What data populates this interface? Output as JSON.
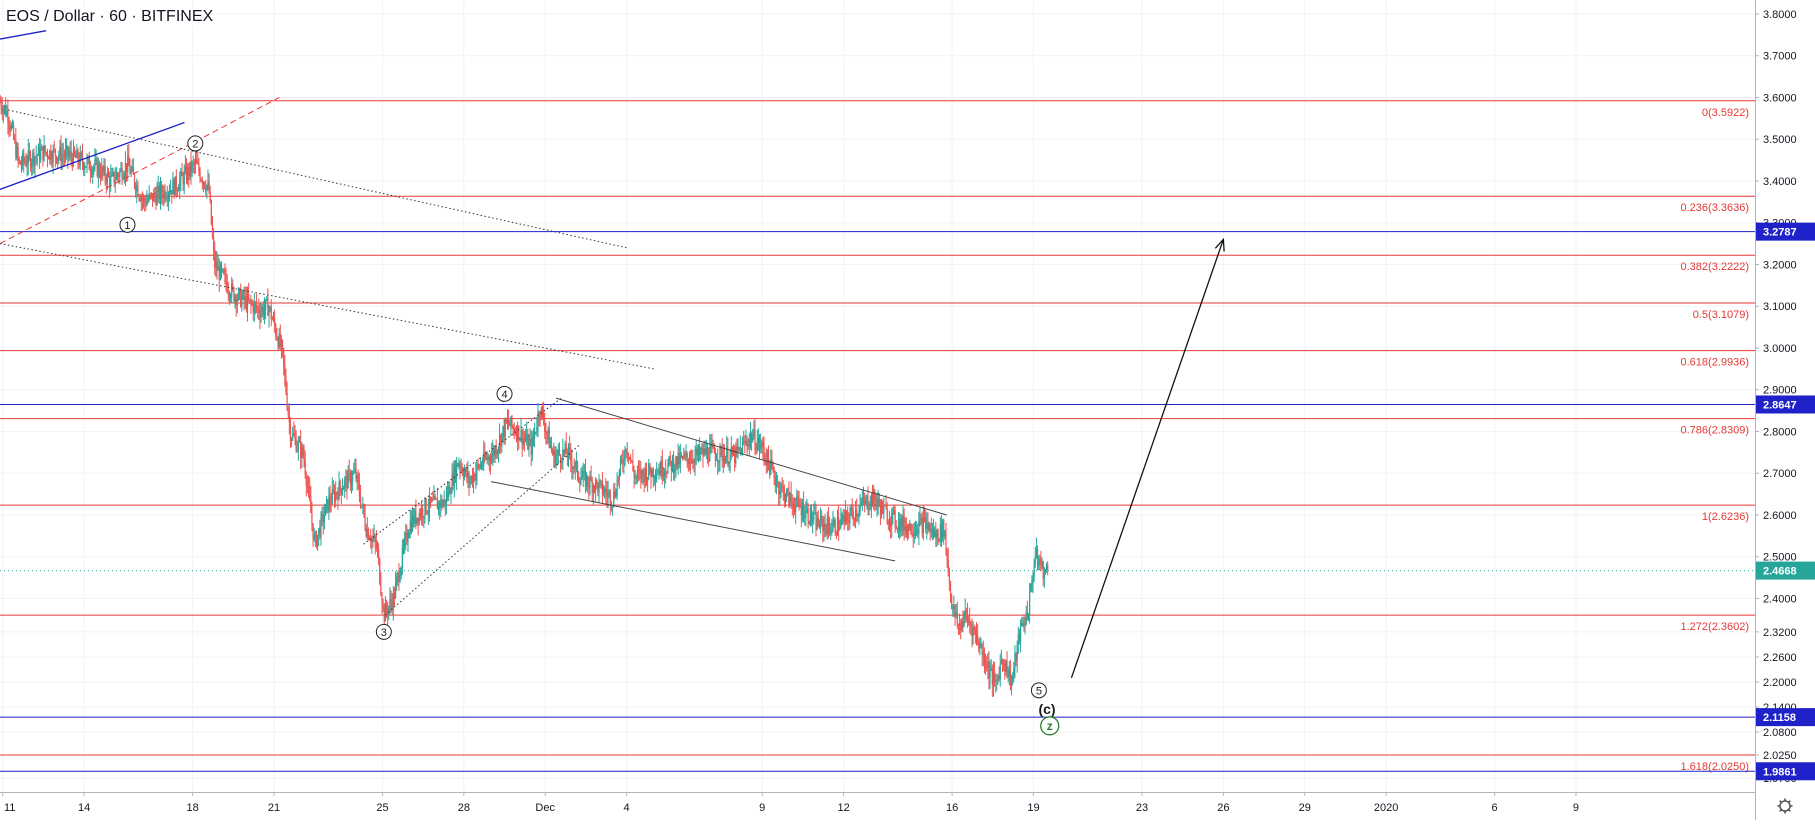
{
  "symbol": {
    "title": "EOS / Dollar · 60 · BITFINEX"
  },
  "colors": {
    "up": "#26a69a",
    "down": "#ef5350",
    "fib_line": "#e53935",
    "fib_label": "#e53935",
    "blue_line": "#1e22c8",
    "blue_badge": "#1e22c8",
    "price_line": "#26a69a",
    "price_badge": "#26a69a",
    "trend_line": "#444444",
    "arrow": "#111111",
    "wave_green": "#2e7d32",
    "axis_text": "#131722",
    "grid": "#f0f3fa"
  },
  "chart_data": {
    "type": "candlestick",
    "title": "EOS / Dollar · 60 · BITFINEX",
    "ylim": [
      1.94,
      3.86
    ],
    "y_ticks": [
      "3.8000",
      "3.7000",
      "3.6000",
      "3.5000",
      "3.4000",
      "3.3000",
      "3.2000",
      "3.1000",
      "3.0000",
      "2.9000",
      "2.8000",
      "2.7000",
      "2.6000",
      "2.5000",
      "2.4000",
      "2.3200",
      "2.2600",
      "2.2000",
      "2.1400",
      "2.0800",
      "2.0250",
      "1.9700"
    ],
    "y_tick_values": [
      3.8,
      3.7,
      3.6,
      3.5,
      3.4,
      3.3,
      3.2,
      3.1,
      3.0,
      2.9,
      2.8,
      2.7,
      2.6,
      2.5,
      2.4,
      2.32,
      2.26,
      2.2,
      2.14,
      2.08,
      2.025,
      1.97
    ],
    "x_ticks": [
      "11",
      "14",
      "18",
      "21",
      "25",
      "28",
      "Dec",
      "4",
      "9",
      "12",
      "16",
      "19",
      "23",
      "26",
      "29",
      "2020",
      "6",
      "9"
    ],
    "x_tick_days": [
      11,
      14,
      18,
      21,
      25,
      28,
      31,
      34,
      39,
      42,
      46,
      49,
      53,
      56,
      59,
      62,
      66,
      69
    ],
    "x_day_range": [
      10.9,
      75.6
    ],
    "price_path_days": [
      10.9,
      11.2,
      11.6,
      12.5,
      13.5,
      14.5,
      15.0,
      15.6,
      16.2,
      16.8,
      17.4,
      18.1,
      18.6,
      18.8,
      19.5,
      20.5,
      20.8,
      21.3,
      21.6,
      22.1,
      22.5,
      23.0,
      23.5,
      24.0,
      24.4,
      24.8,
      25.05,
      25.4,
      26.0,
      26.6,
      27.3,
      27.8,
      28.2,
      28.6,
      29.1,
      29.6,
      30.0,
      30.5,
      30.8,
      31.3,
      31.8,
      32.3,
      32.9,
      33.5,
      34.0,
      34.3,
      34.7,
      35.2,
      36.0,
      37.0,
      38.0,
      38.6,
      39.0,
      39.6,
      40.1,
      40.6,
      41.0,
      41.6,
      42.1,
      42.6,
      43.1,
      43.6,
      44.1,
      44.5,
      45.0,
      45.4,
      45.7,
      46.0,
      46.25,
      46.5,
      46.9,
      47.3,
      47.6,
      47.85,
      48.2,
      48.5,
      48.8,
      49.05,
      49.2,
      49.4,
      49.55
    ],
    "price_path_values": [
      3.59,
      3.56,
      3.44,
      3.47,
      3.46,
      3.43,
      3.4,
      3.44,
      3.35,
      3.37,
      3.39,
      3.44,
      3.38,
      3.2,
      3.13,
      3.09,
      3.1,
      2.99,
      2.8,
      2.74,
      2.53,
      2.63,
      2.67,
      2.7,
      2.57,
      2.52,
      2.36,
      2.4,
      2.58,
      2.62,
      2.63,
      2.73,
      2.68,
      2.72,
      2.75,
      2.82,
      2.8,
      2.76,
      2.86,
      2.74,
      2.75,
      2.69,
      2.67,
      2.64,
      2.77,
      2.69,
      2.7,
      2.71,
      2.73,
      2.75,
      2.74,
      2.79,
      2.76,
      2.67,
      2.63,
      2.61,
      2.58,
      2.57,
      2.59,
      2.62,
      2.64,
      2.6,
      2.58,
      2.57,
      2.58,
      2.55,
      2.57,
      2.38,
      2.33,
      2.36,
      2.31,
      2.24,
      2.19,
      2.26,
      2.2,
      2.32,
      2.37,
      2.5,
      2.49,
      2.46,
      2.47
    ],
    "fib_levels": [
      {
        "ratio": "0",
        "price": 3.5922,
        "label": "0(3.5922)"
      },
      {
        "ratio": "0.236",
        "price": 3.3636,
        "label": "0.236(3.3636)"
      },
      {
        "ratio": "0.382",
        "price": 3.2222,
        "label": "0.382(3.2222)"
      },
      {
        "ratio": "0.5",
        "price": 3.1079,
        "label": "0.5(3.1079)"
      },
      {
        "ratio": "0.618",
        "price": 2.9936,
        "label": "0.618(2.9936)"
      },
      {
        "ratio": "0.786",
        "price": 2.8309,
        "label": "0.786(2.8309)"
      },
      {
        "ratio": "1",
        "price": 2.6236,
        "label": "1(2.6236)"
      },
      {
        "ratio": "1.272",
        "price": 2.3602,
        "label": "1.272(2.3602)"
      },
      {
        "ratio": "1.618",
        "price": 2.025,
        "label": "1.618(2.0250)"
      }
    ],
    "horizontal_levels": [
      {
        "price": 3.2787,
        "label": "3.2787"
      },
      {
        "price": 2.8647,
        "label": "2.8647"
      },
      {
        "price": 2.1158,
        "label": "2.1158"
      },
      {
        "price": 1.9861,
        "label": "1.9861"
      }
    ],
    "last_price": {
      "price": 2.4668,
      "label": "2.4668"
    },
    "wave_labels": [
      {
        "text": "1",
        "day": 15.6,
        "price": 3.295,
        "style": "circle"
      },
      {
        "text": "2",
        "day": 18.1,
        "price": 3.49,
        "style": "circle"
      },
      {
        "text": "3",
        "day": 25.05,
        "price": 2.32,
        "style": "circle"
      },
      {
        "text": "4",
        "day": 29.5,
        "price": 2.89,
        "style": "circle"
      },
      {
        "text": "5",
        "day": 49.2,
        "price": 2.18,
        "style": "circle"
      },
      {
        "text": "(c)",
        "day": 49.5,
        "price": 2.135,
        "style": "bold"
      },
      {
        "text": "z",
        "day": 49.6,
        "price": 2.095,
        "style": "green-circle"
      }
    ],
    "trend_lines": [
      {
        "x1": 10.9,
        "y1": 3.38,
        "x2": 17.7,
        "y2": 3.54,
        "style": "blue-solid"
      },
      {
        "x1": 10.9,
        "y1": 3.74,
        "x2": 12.6,
        "y2": 3.76,
        "style": "blue-solid"
      },
      {
        "x1": 10.9,
        "y1": 3.25,
        "x2": 21.2,
        "y2": 3.6,
        "style": "red-dashed"
      },
      {
        "x1": 11.2,
        "y1": 3.57,
        "x2": 34.0,
        "y2": 3.24,
        "style": "dotted"
      },
      {
        "x1": 10.9,
        "y1": 3.25,
        "x2": 35.0,
        "y2": 2.95,
        "style": "dotted"
      },
      {
        "x1": 25.1,
        "y1": 2.36,
        "x2": 32.3,
        "y2": 2.77,
        "style": "dotted"
      },
      {
        "x1": 24.3,
        "y1": 2.53,
        "x2": 31.6,
        "y2": 2.88,
        "style": "dotted"
      },
      {
        "x1": 31.4,
        "y1": 2.88,
        "x2": 45.8,
        "y2": 2.6,
        "style": "solid"
      },
      {
        "x1": 29.0,
        "y1": 2.68,
        "x2": 43.9,
        "y2": 2.49,
        "style": "solid"
      }
    ],
    "forecast_arrow": {
      "x1": 50.4,
      "y1": 2.21,
      "x2": 56.0,
      "y2": 3.26
    },
    "grid": true
  }
}
